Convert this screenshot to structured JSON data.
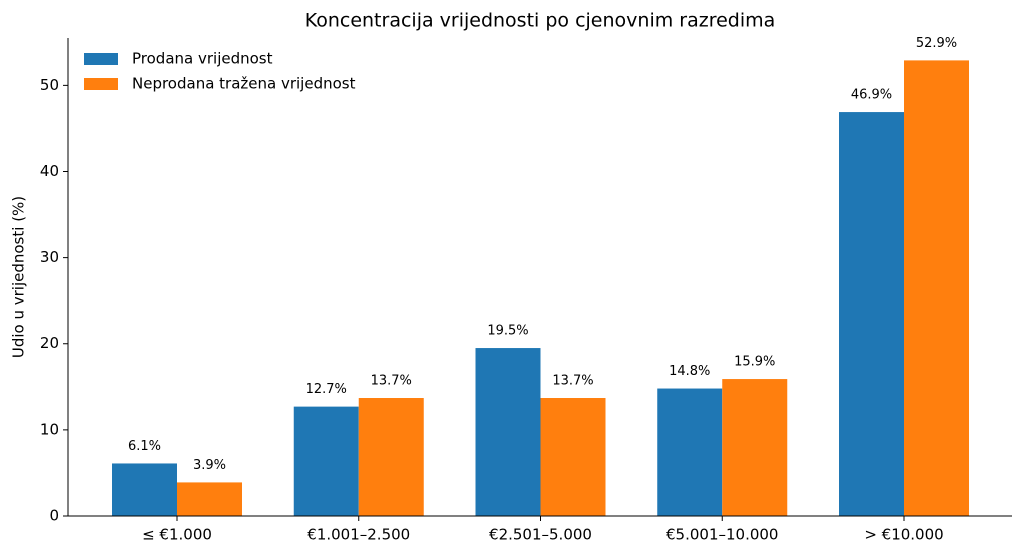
{
  "chart_data": {
    "type": "bar",
    "title": "Koncentracija vrijednosti po cjenovnim razredima",
    "y_label": "Udio u vrijednosti (%)",
    "categories": [
      "≤ €1.000",
      "€1.001–2.500",
      "€2.501–5.000",
      "€5.001–10.000",
      "> €10.000"
    ],
    "series": [
      {
        "name": "Prodana vrijednost",
        "color": "#1f77b4",
        "values": [
          6.1,
          12.7,
          19.5,
          14.8,
          46.9
        ],
        "value_labels": [
          "6.1%",
          "12.7%",
          "19.5%",
          "14.8%",
          "46.9%"
        ]
      },
      {
        "name": "Neprodana tražena vrijednost",
        "color": "#ff7f0e",
        "values": [
          3.9,
          13.7,
          13.7,
          15.9,
          52.9
        ],
        "value_labels": [
          "3.9%",
          "13.7%",
          "13.7%",
          "15.9%",
          "52.9%"
        ]
      }
    ],
    "ylim": [
      0,
      55.5
    ],
    "yticks": [
      0,
      10,
      20,
      30,
      40,
      50
    ],
    "legend": "upper left"
  }
}
